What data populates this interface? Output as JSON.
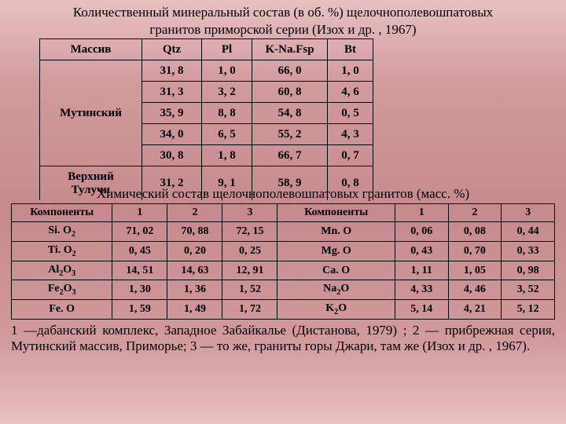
{
  "title_line1": "Количественный минеральный состав  (в об. %)  щелочнополевошпатовых",
  "title_line2": "гранитов приморской серии  (Изох и др. , 1967)",
  "table1": {
    "headers": [
      "Массив",
      "Qtz",
      "Pl",
      "K-Na.Fsp",
      "Bt"
    ],
    "block1_label": "Мутинский",
    "block1_rows": [
      [
        "31, 8",
        "1, 0",
        "66, 0",
        "1, 0"
      ],
      [
        "31, 3",
        "3, 2",
        "60, 8",
        "4, 6"
      ],
      [
        "35, 9",
        "8, 8",
        "54, 8",
        "0, 5"
      ],
      [
        "34, 0",
        "6, 5",
        "55, 2",
        "4, 3"
      ],
      [
        "30, 8",
        "1, 8",
        "66, 7",
        "0, 7"
      ]
    ],
    "block2_label_l1": "Верхний",
    "block2_label_l2": "Тулучи",
    "block2_row": [
      "31, 2",
      "9, 1",
      "58, 9",
      "0, 8"
    ]
  },
  "title2": "Химический состав щелочнополевошпатовых гранитов  (масс. %)",
  "table2": {
    "headers": [
      "Компоненты",
      "1",
      "2",
      "3",
      "Компоненты",
      "1",
      "2",
      "3"
    ],
    "rows": [
      {
        "c1": "Si. O",
        "s1": "2",
        "v1": [
          "71, 02",
          "70, 88",
          "72, 15"
        ],
        "c2": "Mn. O",
        "s2": "",
        "v2": [
          "0, 06",
          "0, 08",
          "0, 44"
        ]
      },
      {
        "c1": "Ti. O",
        "s1": "2",
        "v1": [
          "0, 45",
          "0, 20",
          "0, 25"
        ],
        "c2": "Mg. O",
        "s2": "",
        "v2": [
          "0, 43",
          "0, 70",
          "0, 33"
        ]
      },
      {
        "c1": "Al",
        "s1": "2",
        "e1": "O",
        "se1": "3",
        "v1": [
          "14, 51",
          "14, 63",
          "12, 91"
        ],
        "c2": "Ca. O",
        "s2": "",
        "v2": [
          "1, 11",
          "1, 05",
          "0, 98"
        ]
      },
      {
        "c1": "Fe",
        "s1": "2",
        "e1": "O",
        "se1": "3",
        "v1": [
          "1, 30",
          "1, 36",
          "1, 52"
        ],
        "c2": "Na",
        "s2": "2",
        "e2": "O",
        "v2": [
          "4, 33",
          "4, 46",
          "3, 52"
        ]
      },
      {
        "c1": "Fe. O",
        "s1": "",
        "v1": [
          "1, 59",
          "1, 49",
          "1, 72"
        ],
        "c2": "K",
        "s2": "2",
        "e2": "O",
        "v2": [
          "5, 14",
          "4, 21",
          "5, 12"
        ]
      }
    ]
  },
  "footnote": "1   —дабанский комплекс, Западное Забайкалье (Дистанова, 1979) ;  2 — прибрежная серия, Мутинский массив, Приморье;   3 — то же, граниты горы Джари, там же (Изох и др. , 1967).",
  "col_widths": {
    "t1": [
      130,
      76,
      64,
      96,
      58
    ],
    "t2": [
      110,
      60,
      60,
      60,
      128,
      58,
      58,
      58
    ]
  },
  "colors": {
    "border": "#000000",
    "text": "#000000"
  }
}
